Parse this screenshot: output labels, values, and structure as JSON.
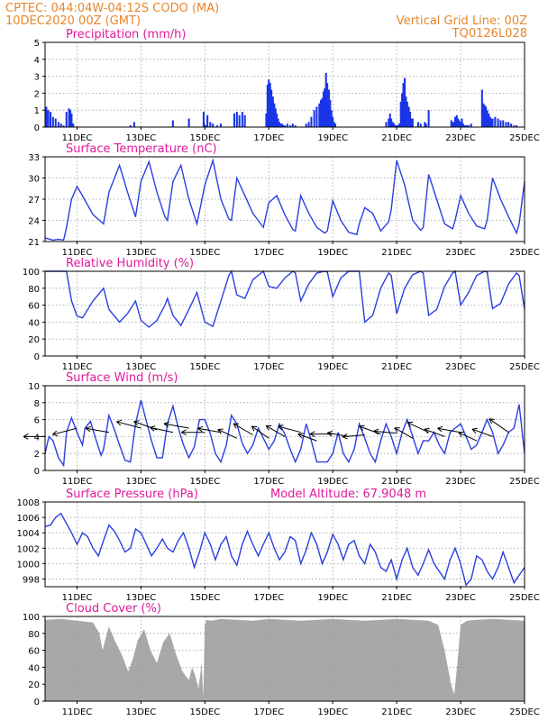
{
  "header": {
    "left_line1": "CPTEC:   044:04W-04:12S   CODO (MA)",
    "left_line2": "10DEC2020 00Z (GMT)",
    "right_line1": "Vertical Grid Line: 00Z",
    "right_line2": "TQ0126L028"
  },
  "colors": {
    "header": "#e8862a",
    "panel_title": "#e0199a",
    "series": "#2b3fe0",
    "precip_bar": "#1a35e8",
    "cloud_fill": "#a8a8a8"
  },
  "x_axis": {
    "tick_labels": [
      "11DEC",
      "13DEC",
      "15DEC",
      "17DEC",
      "19DEC",
      "21DEC",
      "23DEC",
      "25DEC"
    ],
    "tick_days": [
      1,
      3,
      5,
      7,
      9,
      11,
      13,
      15
    ],
    "range_days": [
      0,
      15
    ]
  },
  "chart_data": [
    {
      "type": "bar",
      "id": "precip",
      "title": "Precipitation (mm/h)",
      "ylim": [
        0,
        5
      ],
      "yticks": [
        0,
        1,
        2,
        3,
        4,
        5
      ],
      "grid": true,
      "x_days": [
        0.04,
        0.1,
        0.17,
        0.25,
        0.33,
        0.42,
        0.5,
        0.58,
        0.67,
        0.75,
        0.79,
        0.83,
        0.88,
        2.67,
        2.79,
        4.0,
        4.5,
        4.96,
        4.98,
        5.04,
        5.08,
        5.17,
        5.25,
        5.38,
        5.5,
        5.92,
        6.0,
        6.08,
        6.17,
        6.25,
        6.92,
        6.96,
        7.0,
        7.04,
        7.08,
        7.13,
        7.17,
        7.21,
        7.25,
        7.29,
        7.33,
        7.38,
        7.42,
        7.46,
        7.5,
        7.58,
        7.67,
        7.75,
        7.83,
        8.17,
        8.25,
        8.33,
        8.42,
        8.5,
        8.58,
        8.63,
        8.67,
        8.71,
        8.75,
        8.79,
        8.83,
        8.88,
        8.92,
        8.96,
        9.0,
        9.04,
        9.08,
        10.67,
        10.75,
        10.79,
        10.83,
        10.88,
        10.92,
        10.96,
        11.0,
        11.04,
        11.08,
        11.13,
        11.17,
        11.21,
        11.25,
        11.29,
        11.33,
        11.38,
        11.42,
        11.46,
        11.5,
        11.67,
        11.75,
        11.88,
        11.92,
        12.0,
        12.71,
        12.75,
        12.79,
        12.83,
        12.88,
        12.92,
        12.96,
        13.0,
        13.04,
        13.08,
        13.13,
        13.17,
        13.21,
        13.25,
        13.33,
        13.67,
        13.71,
        13.75,
        13.79,
        13.83,
        13.88,
        13.92,
        13.96,
        14.0,
        14.08,
        14.17,
        14.25,
        14.33,
        14.42,
        14.5,
        14.58,
        14.67,
        14.75
      ],
      "values": [
        1.2,
        1.0,
        0.9,
        0.6,
        0.5,
        0.3,
        0.2,
        0.1,
        0.9,
        1.1,
        1.0,
        0.8,
        0.2,
        0.1,
        0.3,
        0.4,
        0.5,
        0.9,
        0.2,
        0.1,
        0.7,
        0.3,
        0.2,
        0.1,
        0.2,
        0.8,
        0.9,
        0.7,
        0.9,
        0.7,
        0.8,
        2.5,
        2.8,
        2.6,
        2.2,
        1.8,
        1.4,
        1.1,
        0.8,
        0.5,
        0.3,
        0.2,
        0.2,
        0.1,
        0.1,
        0.2,
        0.1,
        0.2,
        0.1,
        0.2,
        0.3,
        0.6,
        1.0,
        1.2,
        1.4,
        1.6,
        1.7,
        2.1,
        2.3,
        3.2,
        2.6,
        2.2,
        1.6,
        1.0,
        0.6,
        0.3,
        0.2,
        0.3,
        0.5,
        0.8,
        0.5,
        0.3,
        0.2,
        0.1,
        0.1,
        0.1,
        0.2,
        1.5,
        2.0,
        2.6,
        2.9,
        1.8,
        1.5,
        1.2,
        0.9,
        0.5,
        0.5,
        0.3,
        0.2,
        0.3,
        0.2,
        1.0,
        0.4,
        0.3,
        0.3,
        0.6,
        0.7,
        0.5,
        0.4,
        0.3,
        0.5,
        0.2,
        0.1,
        0.1,
        0.1,
        0.1,
        0.2,
        2.2,
        1.4,
        1.3,
        1.2,
        1.0,
        0.8,
        0.6,
        0.5,
        0.5,
        0.6,
        0.5,
        0.4,
        0.4,
        0.3,
        0.3,
        0.2,
        0.1,
        0.1
      ]
    },
    {
      "type": "line",
      "id": "temp",
      "title": "Surface Temperature (nC)",
      "ylim": [
        21,
        33
      ],
      "yticks": [
        21,
        24,
        27,
        30,
        33
      ],
      "grid": true,
      "x_days": [
        0.0,
        0.25,
        0.42,
        0.58,
        0.67,
        0.83,
        1.0,
        1.17,
        1.5,
        1.83,
        2.0,
        2.33,
        2.58,
        2.83,
        3.0,
        3.25,
        3.5,
        3.75,
        3.83,
        4.0,
        4.25,
        4.5,
        4.75,
        5.0,
        5.25,
        5.5,
        5.75,
        5.83,
        6.0,
        6.25,
        6.5,
        6.83,
        7.0,
        7.25,
        7.5,
        7.75,
        7.83,
        8.0,
        8.25,
        8.5,
        8.75,
        8.83,
        9.0,
        9.25,
        9.5,
        9.75,
        9.83,
        10.0,
        10.25,
        10.5,
        10.75,
        10.83,
        11.0,
        11.25,
        11.5,
        11.75,
        11.83,
        12.0,
        12.25,
        12.5,
        12.75,
        12.83,
        13.0,
        13.25,
        13.5,
        13.75,
        13.83,
        14.0,
        14.25,
        14.5,
        14.75,
        14.83,
        15.0
      ],
      "values": [
        21.5,
        21.2,
        21.3,
        21.2,
        23.0,
        27.0,
        28.8,
        27.5,
        24.8,
        23.5,
        28.0,
        31.8,
        28.0,
        24.5,
        29.5,
        32.3,
        28.0,
        24.5,
        24.0,
        29.5,
        31.8,
        27.0,
        23.5,
        29.0,
        32.5,
        27.0,
        24.2,
        24.0,
        30.0,
        27.5,
        25.0,
        23.0,
        26.5,
        27.5,
        24.8,
        22.7,
        22.5,
        27.5,
        25.0,
        23.0,
        22.2,
        22.5,
        26.8,
        24.0,
        22.3,
        22.0,
        23.5,
        25.8,
        25.0,
        22.5,
        23.8,
        25.5,
        32.5,
        29.0,
        24.0,
        22.6,
        23.0,
        30.5,
        27.0,
        23.5,
        22.8,
        24.0,
        27.5,
        25.0,
        23.2,
        22.8,
        24.0,
        30.0,
        27.0,
        24.5,
        22.2,
        23.5,
        29.5
      ]
    },
    {
      "type": "line",
      "id": "rh",
      "title": "Relative Humidity (%)",
      "ylim": [
        0,
        100
      ],
      "yticks": [
        0,
        20,
        40,
        60,
        80,
        100
      ],
      "grid": true,
      "x_days": [
        0.0,
        0.42,
        0.67,
        0.83,
        1.0,
        1.17,
        1.5,
        1.83,
        2.0,
        2.33,
        2.58,
        2.83,
        3.0,
        3.25,
        3.5,
        3.75,
        3.83,
        4.0,
        4.25,
        4.5,
        4.75,
        5.0,
        5.25,
        5.5,
        5.75,
        5.83,
        6.0,
        6.25,
        6.5,
        6.83,
        7.0,
        7.25,
        7.5,
        7.75,
        7.83,
        8.0,
        8.25,
        8.5,
        8.75,
        8.83,
        9.0,
        9.25,
        9.5,
        9.75,
        9.83,
        10.0,
        10.25,
        10.5,
        10.75,
        10.83,
        11.0,
        11.25,
        11.5,
        11.75,
        11.83,
        12.0,
        12.25,
        12.5,
        12.75,
        12.83,
        13.0,
        13.25,
        13.5,
        13.75,
        13.83,
        14.0,
        14.25,
        14.5,
        14.75,
        14.83,
        15.0
      ],
      "values": [
        100,
        100,
        100,
        65,
        47,
        45,
        65,
        80,
        55,
        40,
        50,
        65,
        42,
        34,
        42,
        60,
        68,
        48,
        36,
        55,
        75,
        40,
        35,
        65,
        95,
        100,
        72,
        68,
        90,
        100,
        82,
        80,
        92,
        100,
        98,
        65,
        85,
        98,
        100,
        99,
        70,
        92,
        100,
        100,
        100,
        40,
        48,
        80,
        98,
        95,
        50,
        80,
        96,
        100,
        98,
        48,
        55,
        82,
        98,
        100,
        60,
        75,
        95,
        100,
        99,
        56,
        62,
        85,
        98,
        95,
        55
      ]
    },
    {
      "type": "line",
      "id": "wind",
      "title": "Surface Wind (m/s)",
      "ylim": [
        0,
        10
      ],
      "yticks": [
        0,
        2,
        4,
        6,
        8,
        10
      ],
      "grid": true,
      "x_days": [
        0.0,
        0.12,
        0.25,
        0.42,
        0.58,
        0.67,
        0.83,
        1.0,
        1.17,
        1.25,
        1.42,
        1.58,
        1.75,
        1.83,
        2.0,
        2.17,
        2.33,
        2.5,
        2.67,
        2.83,
        3.0,
        3.17,
        3.33,
        3.5,
        3.67,
        3.83,
        4.0,
        4.17,
        4.33,
        4.5,
        4.67,
        4.83,
        5.0,
        5.17,
        5.33,
        5.5,
        5.67,
        5.83,
        6.0,
        6.17,
        6.33,
        6.5,
        6.67,
        6.83,
        7.0,
        7.17,
        7.33,
        7.5,
        7.67,
        7.83,
        8.0,
        8.17,
        8.33,
        8.5,
        8.67,
        8.83,
        9.0,
        9.17,
        9.33,
        9.5,
        9.67,
        9.83,
        10.0,
        10.17,
        10.33,
        10.5,
        10.67,
        10.83,
        11.0,
        11.17,
        11.33,
        11.5,
        11.67,
        11.83,
        12.0,
        12.17,
        12.33,
        12.5,
        12.67,
        12.83,
        13.0,
        13.17,
        13.33,
        13.5,
        13.67,
        13.83,
        14.0,
        14.17,
        14.33,
        14.5,
        14.67,
        14.83,
        15.0
      ],
      "values": [
        2.0,
        4.0,
        3.5,
        1.5,
        0.6,
        4.5,
        6.2,
        4.5,
        3.0,
        5.0,
        5.8,
        3.8,
        1.8,
        2.5,
        6.5,
        4.8,
        3.0,
        1.2,
        1.0,
        5.5,
        8.3,
        5.8,
        3.5,
        1.5,
        1.5,
        5.5,
        7.6,
        5.0,
        3.0,
        1.5,
        2.8,
        6.0,
        6.0,
        4.3,
        2.0,
        1.0,
        3.0,
        6.5,
        5.5,
        3.2,
        2.0,
        3.0,
        5.0,
        3.8,
        2.5,
        3.5,
        5.5,
        4.3,
        2.5,
        1.0,
        2.5,
        5.5,
        3.5,
        1.0,
        1.0,
        1.0,
        2.0,
        4.5,
        2.0,
        1.0,
        2.5,
        5.5,
        3.8,
        2.0,
        1.0,
        3.5,
        5.5,
        4.0,
        2.0,
        4.5,
        6.0,
        4.0,
        2.0,
        3.5,
        3.5,
        4.5,
        3.0,
        2.0,
        4.5,
        5.0,
        5.5,
        4.0,
        2.5,
        3.0,
        4.5,
        6.0,
        4.5,
        2.0,
        3.0,
        4.5,
        5.0,
        7.8,
        2.0
      ],
      "arrow_x_days": [
        0.0,
        1.0,
        2.0,
        3.0,
        3.5,
        4.0,
        4.5,
        5.0,
        5.5,
        6.0,
        6.5,
        7.0,
        7.5,
        8.0,
        8.5,
        9.0,
        9.5,
        10.0,
        10.5,
        11.0,
        11.5,
        12.0,
        12.5,
        13.0,
        13.5,
        14.0,
        14.5
      ],
      "arrow_speed": [
        4.0,
        5.0,
        4.5,
        5.0,
        4.8,
        4.5,
        5.0,
        4.5,
        4.5,
        3.8,
        4.2,
        3.8,
        4.0,
        4.5,
        3.5,
        4.3,
        4.0,
        4.2,
        4.3,
        4.4,
        3.8,
        4.5,
        4.0,
        4.5,
        3.5,
        4.0,
        4.5
      ],
      "arrow_dir_from_deg": [
        90,
        105,
        80,
        75,
        70,
        78,
        80,
        90,
        80,
        65,
        60,
        55,
        60,
        75,
        70,
        90,
        80,
        95,
        70,
        85,
        60,
        65,
        70,
        80,
        65,
        70,
        55
      ]
    },
    {
      "type": "line",
      "id": "pressure",
      "title": "Surface Pressure (hPa)",
      "annotation": "Model Altitude: 67.9048 m",
      "ylim": [
        997,
        1008
      ],
      "yticks": [
        998,
        1000,
        1002,
        1004,
        1006,
        1008
      ],
      "grid": true,
      "x_days": [
        0.0,
        0.17,
        0.33,
        0.5,
        0.67,
        0.83,
        1.0,
        1.17,
        1.33,
        1.5,
        1.67,
        1.83,
        2.0,
        2.17,
        2.33,
        2.5,
        2.67,
        2.83,
        3.0,
        3.17,
        3.33,
        3.5,
        3.67,
        3.83,
        4.0,
        4.17,
        4.33,
        4.5,
        4.67,
        4.83,
        5.0,
        5.17,
        5.33,
        5.5,
        5.67,
        5.83,
        6.0,
        6.17,
        6.33,
        6.5,
        6.67,
        6.83,
        7.0,
        7.17,
        7.33,
        7.5,
        7.67,
        7.83,
        8.0,
        8.17,
        8.33,
        8.5,
        8.67,
        8.83,
        9.0,
        9.17,
        9.33,
        9.5,
        9.67,
        9.83,
        10.0,
        10.17,
        10.33,
        10.5,
        10.67,
        10.83,
        11.0,
        11.17,
        11.33,
        11.5,
        11.67,
        11.83,
        12.0,
        12.17,
        12.33,
        12.5,
        12.67,
        12.83,
        13.0,
        13.17,
        13.33,
        13.5,
        13.67,
        13.83,
        14.0,
        14.17,
        14.33,
        14.5,
        14.67,
        14.83,
        15.0
      ],
      "values": [
        1004.8,
        1005.0,
        1006.0,
        1006.5,
        1005.2,
        1004.0,
        1002.5,
        1004.0,
        1003.5,
        1002.0,
        1001.0,
        1003.0,
        1005.0,
        1004.2,
        1003.0,
        1001.5,
        1002.0,
        1004.5,
        1004.0,
        1002.5,
        1001.0,
        1002.0,
        1003.2,
        1002.0,
        1001.5,
        1003.0,
        1004.0,
        1002.0,
        999.5,
        1001.5,
        1004.0,
        1002.5,
        1000.5,
        1002.5,
        1003.5,
        1001.0,
        999.8,
        1002.5,
        1004.2,
        1002.5,
        1001.0,
        1002.5,
        1004.0,
        1002.0,
        1000.5,
        1001.5,
        1003.5,
        1003.0,
        1000.0,
        1001.8,
        1004.0,
        1002.5,
        1000.0,
        1001.5,
        1003.8,
        1002.5,
        1000.5,
        1002.5,
        1003.0,
        1001.0,
        1000.0,
        1002.5,
        1001.5,
        999.5,
        999.0,
        1000.5,
        998.0,
        1000.5,
        1002.0,
        999.5,
        998.5,
        1000.0,
        1001.8,
        1000.0,
        999.0,
        998.0,
        1000.5,
        1002.0,
        1000.0,
        997.2,
        998.0,
        1001.0,
        1000.5,
        999.0,
        998.0,
        999.5,
        1001.5,
        999.5,
        997.5,
        998.5,
        999.5
      ]
    },
    {
      "type": "area",
      "id": "cloud",
      "title": "Cloud Cover (%)",
      "ylim": [
        0,
        100
      ],
      "yticks": [
        0,
        20,
        40,
        60,
        80,
        100
      ],
      "grid": true,
      "x_days": [
        0.0,
        0.5,
        1.0,
        1.5,
        1.7,
        1.8,
        1.9,
        2.0,
        2.2,
        2.4,
        2.6,
        2.75,
        2.9,
        3.1,
        3.3,
        3.5,
        3.7,
        3.9,
        4.1,
        4.3,
        4.5,
        4.6,
        4.7,
        4.8,
        4.9,
        4.95,
        5.0,
        5.05,
        5.2,
        5.5,
        6.0,
        6.5,
        7.0,
        7.5,
        8.0,
        8.5,
        9.0,
        9.5,
        10.0,
        10.5,
        11.0,
        11.5,
        12.0,
        12.3,
        12.5,
        12.6,
        12.7,
        12.8,
        12.9,
        13.0,
        13.2,
        13.5,
        14.0,
        14.5,
        15.0
      ],
      "values": [
        96,
        97,
        95,
        93,
        80,
        60,
        75,
        88,
        70,
        55,
        35,
        50,
        72,
        85,
        60,
        45,
        70,
        80,
        55,
        35,
        25,
        40,
        30,
        15,
        45,
        5,
        90,
        96,
        95,
        97,
        96,
        95,
        97,
        96,
        95,
        96,
        97,
        96,
        95,
        96,
        97,
        96,
        95,
        90,
        60,
        40,
        20,
        8,
        45,
        90,
        95,
        96,
        97,
        96,
        95
      ]
    }
  ]
}
